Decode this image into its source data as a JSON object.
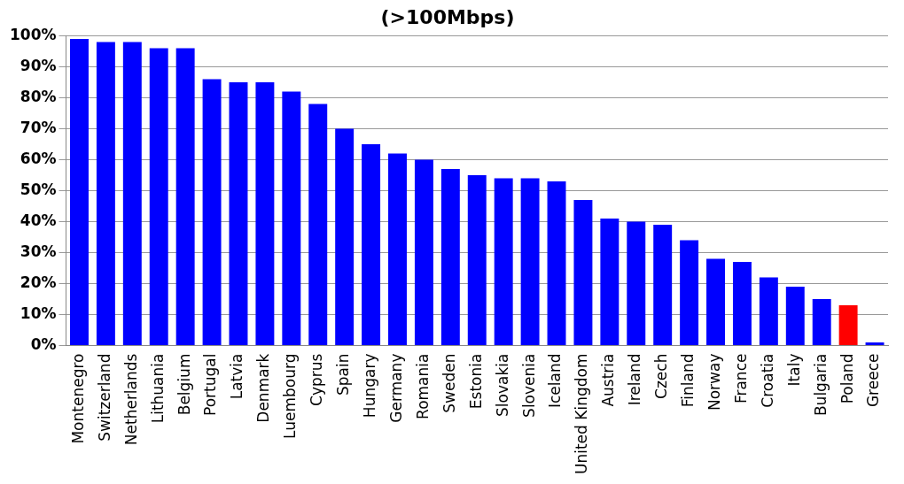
{
  "chart_data": {
    "type": "bar",
    "title": "(>100Mbps)",
    "categories": [
      "Montenegro",
      "Switzerland",
      "Netherlands",
      "Lithuania",
      "Belgium",
      "Portugal",
      "Latvia",
      "Denmark",
      "Luembourg",
      "Cyprus",
      "Spain",
      "Hungary",
      "Germany",
      "Romania",
      "Sweden",
      "Estonia",
      "Slovakia",
      "Slovenia",
      "Iceland",
      "United Kingdom",
      "Austria",
      "Ireland",
      "Czech",
      "Finland",
      "Norway",
      "France",
      "Croatia",
      "Italy",
      "Bulgaria",
      "Poland",
      "Greece"
    ],
    "values": [
      99,
      98,
      98,
      96,
      96,
      86,
      85,
      85,
      82,
      78,
      70,
      65,
      62,
      60,
      57,
      55,
      54,
      54,
      53,
      47,
      41,
      40,
      39,
      34,
      28,
      27,
      22,
      19,
      15,
      13,
      1
    ],
    "colors": [
      "#0000ff",
      "#0000ff",
      "#0000ff",
      "#0000ff",
      "#0000ff",
      "#0000ff",
      "#0000ff",
      "#0000ff",
      "#0000ff",
      "#0000ff",
      "#0000ff",
      "#0000ff",
      "#0000ff",
      "#0000ff",
      "#0000ff",
      "#0000ff",
      "#0000ff",
      "#0000ff",
      "#0000ff",
      "#0000ff",
      "#0000ff",
      "#0000ff",
      "#0000ff",
      "#0000ff",
      "#0000ff",
      "#0000ff",
      "#0000ff",
      "#0000ff",
      "#0000ff",
      "#ff0000",
      "#0000ff"
    ],
    "ylim": [
      0,
      100
    ],
    "yticks": [
      {
        "value": 0,
        "label": "0%"
      },
      {
        "value": 10,
        "label": "10%"
      },
      {
        "value": 20,
        "label": "20%"
      },
      {
        "value": 30,
        "label": "30%"
      },
      {
        "value": 40,
        "label": "40%"
      },
      {
        "value": 50,
        "label": "50%"
      },
      {
        "value": 60,
        "label": "60%"
      },
      {
        "value": 70,
        "label": "70%"
      },
      {
        "value": 80,
        "label": "80%"
      },
      {
        "value": 90,
        "label": "90%"
      },
      {
        "value": 100,
        "label": "100%"
      }
    ],
    "grid": "y",
    "legend": false
  }
}
